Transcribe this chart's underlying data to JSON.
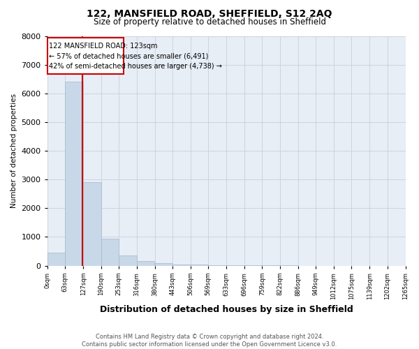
{
  "title": "122, MANSFIELD ROAD, SHEFFIELD, S12 2AQ",
  "subtitle": "Size of property relative to detached houses in Sheffield",
  "xlabel": "Distribution of detached houses by size in Sheffield",
  "ylabel": "Number of detached properties",
  "property_label": "122 MANSFIELD ROAD: 123sqm",
  "annotation_line1": "← 57% of detached houses are smaller (6,491)",
  "annotation_line2": "42% of semi-detached houses are larger (4,738) →",
  "bin_edges": [
    0,
    63,
    127,
    190,
    253,
    316,
    380,
    443,
    506,
    569,
    633,
    696,
    759,
    822,
    886,
    949,
    1012,
    1075,
    1139,
    1202,
    1265
  ],
  "bar_heights": [
    450,
    6400,
    2900,
    950,
    350,
    150,
    80,
    50,
    30,
    15,
    10,
    8,
    5,
    4,
    3,
    2,
    2,
    1,
    1,
    1
  ],
  "bar_color": "#c8d8e8",
  "bar_edge_color": "#a0b8cc",
  "vline_x": 123,
  "vline_color": "#cc0000",
  "box_color": "#cc0000",
  "ylim": [
    0,
    8000
  ],
  "yticks": [
    0,
    1000,
    2000,
    3000,
    4000,
    5000,
    6000,
    7000,
    8000
  ],
  "grid_color": "#c8d0dc",
  "bg_color": "#e8eef6",
  "footer": "Contains HM Land Registry data © Crown copyright and database right 2024.\nContains public sector information licensed under the Open Government Licence v3.0.",
  "title_fontsize": 10,
  "subtitle_fontsize": 8.5
}
